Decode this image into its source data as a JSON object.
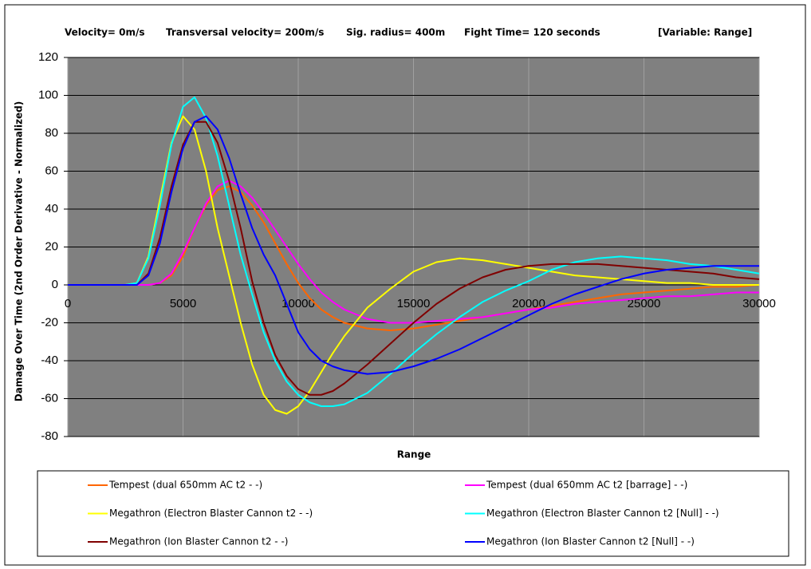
{
  "chart_data": {
    "type": "line",
    "annotations": [
      "Velocity= 0m/s",
      "Transversal velocity= 200m/s",
      "Sig. radius= 400m",
      "Fight Time= 120 seconds",
      "[Variable: Range]"
    ],
    "xlabel": "Range",
    "ylabel": "Damage Over Time (2nd Order Derivative - Normalized)",
    "x": [
      0,
      1000,
      2000,
      2500,
      3000,
      3500,
      4000,
      4500,
      5000,
      5500,
      6000,
      6500,
      7000,
      7500,
      8000,
      8500,
      9000,
      9500,
      10000,
      10500,
      11000,
      11500,
      12000,
      13000,
      14000,
      15000,
      16000,
      17000,
      18000,
      19000,
      20000,
      21000,
      22000,
      23000,
      24000,
      25000,
      26000,
      27000,
      28000,
      29000,
      30000
    ],
    "xlim": [
      0,
      30000
    ],
    "xticks": [
      0,
      5000,
      10000,
      15000,
      20000,
      25000,
      30000
    ],
    "ylim": [
      -80,
      120
    ],
    "yticks": [
      -80,
      -60,
      -40,
      -20,
      0,
      20,
      40,
      60,
      80,
      100,
      120
    ],
    "grid": true,
    "series": [
      {
        "name": "Tempest (dual 650mm AC t2  -  -)",
        "color": "#ff6600",
        "values": [
          0,
          0,
          0,
          0,
          0,
          0,
          1,
          5,
          15,
          30,
          42,
          50,
          52,
          49,
          42,
          33,
          22,
          11,
          1,
          -7,
          -13,
          -17,
          -20,
          -23,
          -24,
          -23,
          -21,
          -19,
          -17,
          -15,
          -13,
          -11,
          -9,
          -7,
          -5,
          -4,
          -3,
          -2,
          -1,
          -1,
          0
        ]
      },
      {
        "name": "Tempest (dual 650mm AC t2 [barrage] -  -)",
        "color": "#ff00ff",
        "values": [
          0,
          0,
          0,
          0,
          0,
          0,
          1,
          6,
          17,
          30,
          43,
          52,
          55,
          52,
          46,
          38,
          29,
          20,
          11,
          3,
          -4,
          -9,
          -13,
          -18,
          -20,
          -20,
          -19,
          -18,
          -17,
          -15,
          -13,
          -12,
          -10,
          -9,
          -8,
          -7,
          -6,
          -6,
          -5,
          -4,
          -4
        ]
      },
      {
        "name": "Megathron (Electron Blaster Cannon t2  -  -)",
        "color": "#ffff00",
        "values": [
          0,
          0,
          0,
          0,
          1,
          15,
          45,
          75,
          89,
          82,
          60,
          30,
          5,
          -20,
          -42,
          -58,
          -66,
          -68,
          -64,
          -56,
          -46,
          -36,
          -27,
          -12,
          -2,
          7,
          12,
          14,
          13,
          11,
          9,
          7,
          5,
          4,
          3,
          2,
          1,
          1,
          0,
          0,
          0
        ]
      },
      {
        "name": "Megathron (Electron Blaster Cannon t2 [Null] -  -)",
        "color": "#00ffff",
        "values": [
          0,
          0,
          0,
          0,
          1,
          14,
          42,
          74,
          94,
          99,
          88,
          68,
          42,
          16,
          -5,
          -25,
          -40,
          -51,
          -58,
          -62,
          -64,
          -64,
          -63,
          -57,
          -47,
          -36,
          -26,
          -17,
          -9,
          -3,
          2,
          8,
          12,
          14,
          15,
          14,
          13,
          11,
          10,
          8,
          6
        ]
      },
      {
        "name": "Megathron (Ion Blaster Cannon t2  -  -)",
        "color": "#800000",
        "values": [
          0,
          0,
          0,
          0,
          0,
          6,
          25,
          52,
          74,
          86,
          86,
          75,
          55,
          30,
          2,
          -20,
          -37,
          -48,
          -55,
          -58,
          -58,
          -56,
          -52,
          -42,
          -31,
          -20,
          -10,
          -2,
          4,
          8,
          10,
          11,
          11,
          11,
          10,
          9,
          8,
          7,
          6,
          4,
          3
        ]
      },
      {
        "name": "Megathron (Ion Blaster Cannon t2 [Null] -  -)",
        "color": "#0000ff",
        "values": [
          0,
          0,
          0,
          0,
          0,
          5,
          22,
          49,
          72,
          86,
          89,
          82,
          67,
          48,
          30,
          16,
          5,
          -10,
          -25,
          -34,
          -40,
          -43,
          -45,
          -47,
          -46,
          -43,
          -39,
          -34,
          -28,
          -22,
          -16,
          -10,
          -5,
          -1,
          3,
          6,
          8,
          9,
          10,
          10,
          10
        ]
      }
    ]
  }
}
